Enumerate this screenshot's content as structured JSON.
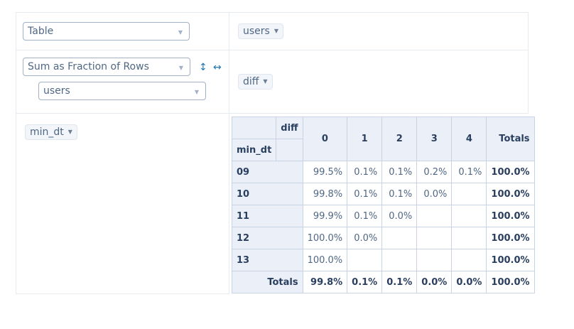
{
  "controls": {
    "renderer": "Table",
    "aggregator": "Sum as Fraction of Rows",
    "attribute": "users",
    "sort_rows_icon": "↕",
    "sort_cols_icon": "↔"
  },
  "pills": {
    "unused": "users",
    "column": "diff",
    "row": "min_dt"
  },
  "table": {
    "col_attr": "diff",
    "row_attr": "min_dt",
    "col_headers": [
      "0",
      "1",
      "2",
      "3",
      "4"
    ],
    "totals_label": "Totals",
    "rows": [
      {
        "label": "09",
        "cells": [
          "99.5%",
          "0.1%",
          "0.1%",
          "0.2%",
          "0.1%"
        ],
        "total": "100.0%"
      },
      {
        "label": "10",
        "cells": [
          "99.8%",
          "0.1%",
          "0.1%",
          "0.0%",
          ""
        ],
        "total": "100.0%"
      },
      {
        "label": "11",
        "cells": [
          "99.9%",
          "0.1%",
          "0.0%",
          "",
          ""
        ],
        "total": "100.0%"
      },
      {
        "label": "12",
        "cells": [
          "100.0%",
          "0.0%",
          "",
          "",
          ""
        ],
        "total": "100.0%"
      },
      {
        "label": "13",
        "cells": [
          "100.0%",
          "",
          "",
          "",
          ""
        ],
        "total": "100.0%"
      }
    ],
    "col_totals": [
      "99.8%",
      "0.1%",
      "0.1%",
      "0.0%",
      "0.0%"
    ],
    "grand_total": "100.0%"
  }
}
